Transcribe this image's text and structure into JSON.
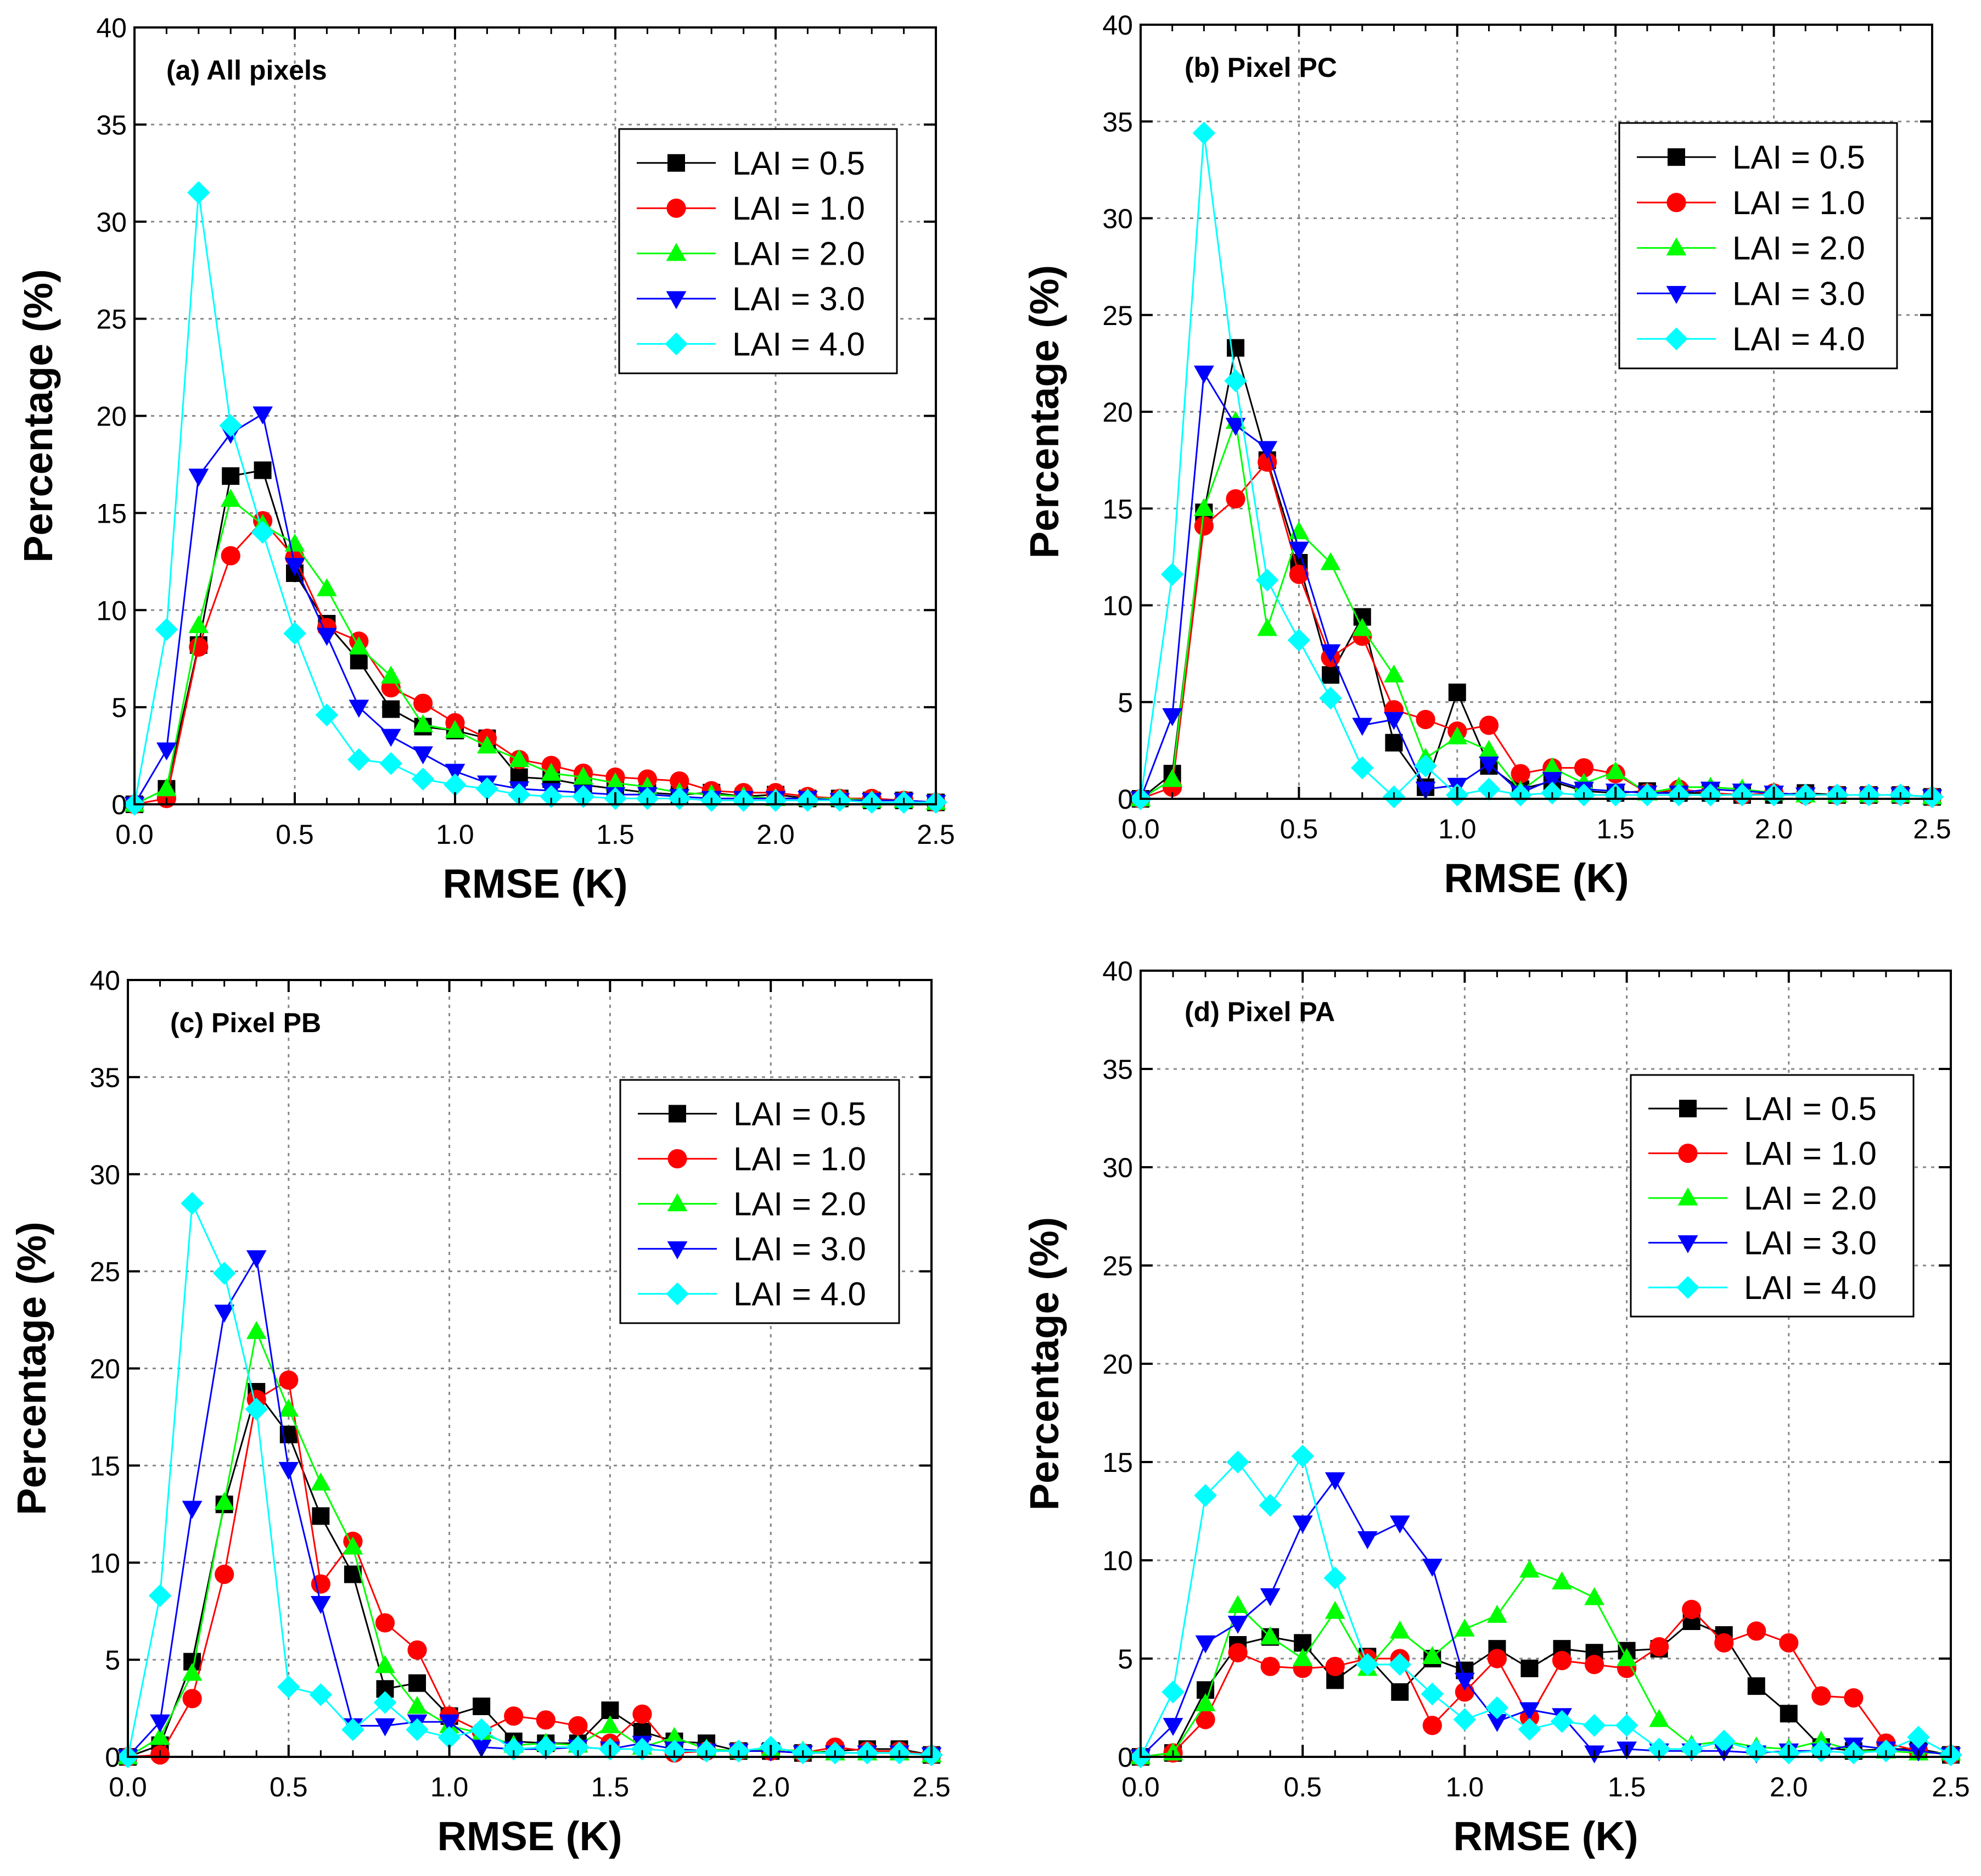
{
  "chart_data": [
    {
      "type": "line",
      "panel": "a",
      "title": "(a) All pixels",
      "xlabel": "RMSE (K)",
      "ylabel": "Percentage (%)",
      "xlim": [
        0,
        2.5
      ],
      "ylim": [
        0,
        40
      ],
      "xticks": [
        "0.0",
        "0.5",
        "1.0",
        "1.5",
        "2.0",
        "2.5"
      ],
      "yticks": [
        "0",
        "5",
        "10",
        "15",
        "20",
        "25",
        "30",
        "35",
        "40"
      ],
      "grid": true,
      "legend_position": "top-right",
      "x": [
        0.0,
        0.1,
        0.2,
        0.3,
        0.4,
        0.5,
        0.6,
        0.7,
        0.8,
        0.9,
        1.0,
        1.1,
        1.2,
        1.3,
        1.4,
        1.5,
        1.6,
        1.7,
        1.8,
        1.9,
        2.0,
        2.1,
        2.2,
        2.3,
        2.4,
        2.5
      ],
      "series": [
        {
          "name": "LAI = 0.5",
          "values": [
            0,
            0.8,
            8.2,
            16.9,
            17.2,
            11.9,
            9.3,
            7.4,
            4.9,
            4.0,
            3.8,
            3.4,
            1.4,
            1.3,
            1.0,
            0.8,
            0.6,
            0.5,
            0.6,
            0.4,
            0.5,
            0.3,
            0.3,
            0.2,
            0.2,
            0.1
          ]
        },
        {
          "name": "LAI = 1.0",
          "values": [
            0,
            0.3,
            8.1,
            12.8,
            14.6,
            12.7,
            9.1,
            8.4,
            6.0,
            5.2,
            4.2,
            3.4,
            2.3,
            2.0,
            1.6,
            1.4,
            1.3,
            1.2,
            0.7,
            0.6,
            0.6,
            0.4,
            0.3,
            0.3,
            0.2,
            0.1
          ]
        },
        {
          "name": "LAI = 2.0",
          "values": [
            0,
            0.8,
            9.2,
            15.7,
            14.4,
            13.4,
            11.1,
            8.1,
            6.6,
            4.1,
            3.8,
            3.0,
            2.3,
            1.6,
            1.4,
            1.1,
            0.9,
            0.6,
            0.5,
            0.4,
            0.3,
            0.3,
            0.3,
            0.2,
            0.2,
            0.1
          ]
        },
        {
          "name": "LAI = 3.0",
          "values": [
            0,
            2.8,
            16.9,
            19.1,
            20.1,
            12.3,
            8.7,
            5.0,
            3.5,
            2.6,
            1.7,
            1.1,
            0.8,
            0.7,
            0.6,
            0.5,
            0.5,
            0.4,
            0.3,
            0.3,
            0.3,
            0.3,
            0.2,
            0.2,
            0.2,
            0.1
          ]
        },
        {
          "name": "LAI = 4.0",
          "values": [
            0,
            9.0,
            31.5,
            19.5,
            14.0,
            8.8,
            4.6,
            2.3,
            2.1,
            1.3,
            1.0,
            0.8,
            0.5,
            0.4,
            0.4,
            0.3,
            0.3,
            0.3,
            0.2,
            0.2,
            0.2,
            0.2,
            0.2,
            0.1,
            0.1,
            0.1
          ]
        }
      ]
    },
    {
      "type": "line",
      "panel": "b",
      "title": "(b) Pixel PC",
      "xlabel": "RMSE (K)",
      "ylabel": "Percentage (%)",
      "xlim": [
        0,
        2.5
      ],
      "ylim": [
        0,
        40
      ],
      "xticks": [
        "0.0",
        "0.5",
        "1.0",
        "1.5",
        "2.0",
        "2.5"
      ],
      "yticks": [
        "0",
        "5",
        "10",
        "15",
        "20",
        "25",
        "30",
        "35",
        "40"
      ],
      "grid": true,
      "legend_position": "top-right",
      "x": [
        0.0,
        0.1,
        0.2,
        0.3,
        0.4,
        0.5,
        0.6,
        0.7,
        0.8,
        0.9,
        1.0,
        1.1,
        1.2,
        1.3,
        1.4,
        1.5,
        1.6,
        1.7,
        1.8,
        1.9,
        2.0,
        2.1,
        2.2,
        2.3,
        2.4,
        2.5
      ],
      "series": [
        {
          "name": "LAI = 0.5",
          "values": [
            0,
            1.3,
            14.8,
            23.3,
            17.5,
            12.2,
            6.4,
            9.4,
            2.9,
            0.6,
            5.5,
            1.7,
            0.5,
            0.9,
            0.4,
            0.3,
            0.4,
            0.3,
            0.3,
            0.2,
            0.2,
            0.3,
            0.2,
            0.2,
            0.2,
            0.1
          ]
        },
        {
          "name": "LAI = 1.0",
          "values": [
            0,
            0.6,
            14.1,
            15.5,
            17.4,
            11.6,
            7.3,
            8.4,
            4.6,
            4.1,
            3.5,
            3.8,
            1.3,
            1.6,
            1.6,
            1.3,
            0.3,
            0.5,
            0.3,
            0.2,
            0.3,
            0.2,
            0.2,
            0.2,
            0.2,
            0.1
          ]
        },
        {
          "name": "LAI = 2.0",
          "values": [
            0,
            1.0,
            15.0,
            19.5,
            8.8,
            13.8,
            12.2,
            8.8,
            6.4,
            2.1,
            3.2,
            2.5,
            0.4,
            1.6,
            0.8,
            1.4,
            0.3,
            0.6,
            0.6,
            0.5,
            0.3,
            0.2,
            0.2,
            0.2,
            0.2,
            0.1
          ]
        },
        {
          "name": "LAI = 3.0",
          "values": [
            0,
            4.3,
            22.0,
            19.3,
            18.1,
            12.9,
            7.6,
            3.8,
            4.1,
            0.5,
            0.7,
            1.8,
            0.3,
            1.0,
            0.5,
            0.4,
            0.3,
            0.3,
            0.5,
            0.4,
            0.3,
            0.2,
            0.2,
            0.2,
            0.2,
            0.1
          ]
        },
        {
          "name": "LAI = 4.0",
          "values": [
            0,
            11.6,
            34.4,
            21.6,
            11.3,
            8.2,
            5.2,
            1.6,
            0.1,
            1.7,
            0.2,
            0.5,
            0.2,
            0.3,
            0.2,
            0.2,
            0.2,
            0.2,
            0.2,
            0.2,
            0.2,
            0.2,
            0.2,
            0.2,
            0.2,
            0.1
          ]
        }
      ]
    },
    {
      "type": "line",
      "panel": "c",
      "title": "(c) Pixel PB",
      "xlabel": "RMSE (K)",
      "ylabel": "Percentage (%)",
      "xlim": [
        0,
        2.5
      ],
      "ylim": [
        0,
        40
      ],
      "xticks": [
        "0.0",
        "0.5",
        "1.0",
        "1.5",
        "2.0",
        "2.5"
      ],
      "yticks": [
        "0",
        "5",
        "10",
        "15",
        "20",
        "25",
        "30",
        "35",
        "40"
      ],
      "grid": true,
      "legend_position": "top-right",
      "x": [
        0.0,
        0.1,
        0.2,
        0.3,
        0.4,
        0.5,
        0.6,
        0.7,
        0.8,
        0.9,
        1.0,
        1.1,
        1.2,
        1.3,
        1.4,
        1.5,
        1.6,
        1.7,
        1.8,
        1.9,
        2.0,
        2.1,
        2.2,
        2.3,
        2.4,
        2.5
      ],
      "series": [
        {
          "name": "LAI = 0.5",
          "values": [
            0,
            0.6,
            4.9,
            13.0,
            18.8,
            16.6,
            12.4,
            9.4,
            3.5,
            3.8,
            2.1,
            2.6,
            0.8,
            0.7,
            0.7,
            2.4,
            1.3,
            0.8,
            0.7,
            0.3,
            0.3,
            0.2,
            0.3,
            0.4,
            0.4,
            0.1
          ]
        },
        {
          "name": "LAI = 1.0",
          "values": [
            0,
            0.1,
            3.0,
            9.4,
            18.4,
            19.4,
            8.9,
            11.1,
            6.9,
            5.5,
            2.1,
            1.3,
            2.1,
            1.9,
            1.6,
            0.7,
            2.2,
            0.2,
            0.3,
            0.3,
            0.3,
            0.2,
            0.5,
            0.3,
            0.3,
            0.1
          ]
        },
        {
          "name": "LAI = 2.0",
          "values": [
            0,
            1.0,
            4.3,
            13.1,
            21.9,
            17.9,
            14.1,
            10.8,
            4.7,
            2.6,
            1.6,
            1.2,
            0.6,
            0.7,
            0.6,
            1.6,
            0.5,
            1.0,
            0.4,
            0.3,
            0.4,
            0.3,
            0.2,
            0.2,
            0.2,
            0.1
          ]
        },
        {
          "name": "LAI = 3.0",
          "values": [
            0,
            1.8,
            12.8,
            22.9,
            25.7,
            14.8,
            7.9,
            1.6,
            1.6,
            1.8,
            1.8,
            0.5,
            0.4,
            0.4,
            0.5,
            0.4,
            0.7,
            0.4,
            0.3,
            0.3,
            0.3,
            0.2,
            0.2,
            0.2,
            0.2,
            0.1
          ]
        },
        {
          "name": "LAI = 4.0",
          "values": [
            0,
            8.3,
            28.5,
            24.9,
            17.9,
            3.6,
            3.2,
            1.4,
            2.8,
            1.4,
            1.0,
            1.4,
            0.4,
            0.5,
            0.5,
            0.4,
            0.4,
            0.3,
            0.3,
            0.3,
            0.5,
            0.2,
            0.2,
            0.2,
            0.2,
            0.1
          ]
        }
      ]
    },
    {
      "type": "line",
      "panel": "d",
      "title": "(d) Pixel PA",
      "xlabel": "RMSE (K)",
      "ylabel": "Percentage (%)",
      "xlim": [
        0,
        2.5
      ],
      "ylim": [
        0,
        40
      ],
      "xticks": [
        "0.0",
        "0.5",
        "1.0",
        "1.5",
        "2.0",
        "2.5"
      ],
      "yticks": [
        "0",
        "5",
        "10",
        "15",
        "20",
        "25",
        "30",
        "35",
        "40"
      ],
      "grid": true,
      "legend_position": "top-right",
      "x": [
        0.0,
        0.1,
        0.2,
        0.3,
        0.4,
        0.5,
        0.6,
        0.7,
        0.8,
        0.9,
        1.0,
        1.1,
        1.2,
        1.3,
        1.4,
        1.5,
        1.6,
        1.7,
        1.8,
        1.9,
        2.0,
        2.1,
        2.2,
        2.3,
        2.4,
        2.5
      ],
      "series": [
        {
          "name": "LAI = 0.5",
          "values": [
            0,
            0.2,
            3.4,
            5.7,
            6.1,
            5.8,
            3.9,
            5.1,
            3.3,
            5.0,
            4.4,
            5.5,
            4.5,
            5.5,
            5.3,
            5.4,
            5.5,
            6.9,
            6.2,
            3.6,
            2.2,
            0.5,
            0.3,
            0.4,
            0.4,
            0.1
          ]
        },
        {
          "name": "LAI = 1.0",
          "values": [
            0,
            0.2,
            1.9,
            5.3,
            4.6,
            4.5,
            4.6,
            5.0,
            5.0,
            1.6,
            3.3,
            5.0,
            2.0,
            4.9,
            4.7,
            4.5,
            5.6,
            7.5,
            5.8,
            6.4,
            5.8,
            3.1,
            3.0,
            0.7,
            0.3,
            0.1
          ]
        },
        {
          "name": "LAI = 2.0",
          "values": [
            0,
            0.2,
            2.7,
            7.7,
            6.1,
            5.0,
            7.4,
            4.5,
            6.4,
            5.1,
            6.5,
            7.2,
            9.5,
            8.9,
            8.1,
            5.0,
            1.9,
            0.6,
            0.8,
            0.5,
            0.4,
            0.8,
            0.3,
            0.3,
            0.2,
            0.2
          ]
        },
        {
          "name": "LAI = 3.0",
          "values": [
            0,
            1.6,
            5.8,
            6.8,
            8.2,
            11.9,
            14.1,
            11.1,
            11.9,
            9.7,
            3.9,
            1.8,
            2.4,
            2.1,
            0.2,
            0.4,
            0.3,
            0.3,
            0.3,
            0.2,
            0.3,
            0.3,
            0.6,
            0.4,
            0.3,
            0.1
          ]
        },
        {
          "name": "LAI = 4.0",
          "values": [
            0,
            3.3,
            13.3,
            15.0,
            12.8,
            15.3,
            9.1,
            4.7,
            4.7,
            3.2,
            1.9,
            2.5,
            1.4,
            1.8,
            1.6,
            1.6,
            0.4,
            0.4,
            0.8,
            0.3,
            0.2,
            0.3,
            0.2,
            0.3,
            1.0,
            0.1
          ]
        }
      ]
    }
  ],
  "legend": {
    "labels": [
      "LAI = 0.5",
      "LAI = 1.0",
      "LAI = 2.0",
      "LAI = 3.0",
      "LAI = 4.0"
    ]
  },
  "series_style": [
    {
      "marker": "square",
      "color": "#000000"
    },
    {
      "marker": "circle",
      "color": "#ff0000"
    },
    {
      "marker": "triangle-up",
      "color": "#00ff00"
    },
    {
      "marker": "triangle-down",
      "color": "#0000ff"
    },
    {
      "marker": "diamond",
      "color": "#00ffff"
    }
  ]
}
